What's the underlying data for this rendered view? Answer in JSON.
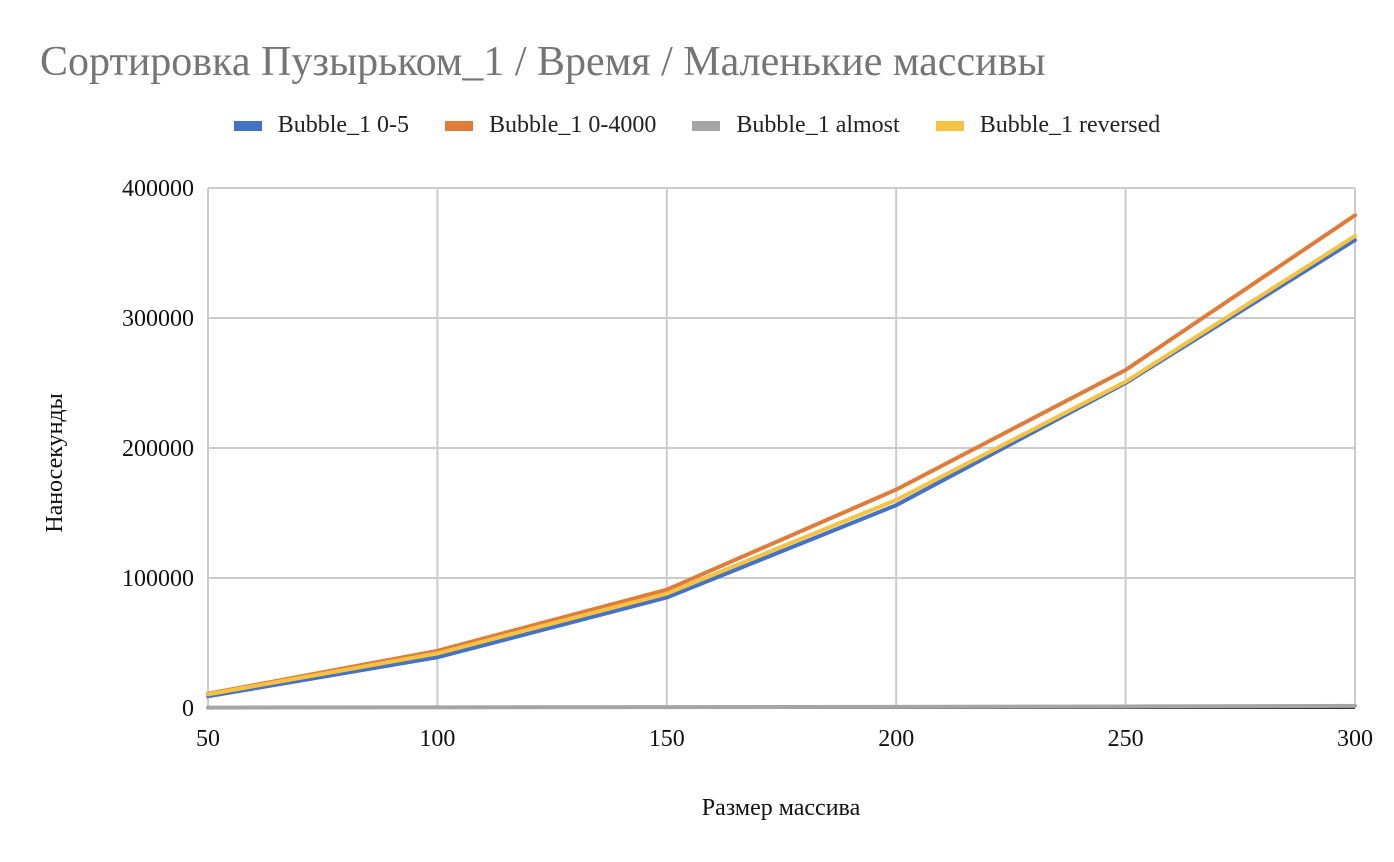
{
  "chart_data": {
    "type": "line",
    "title": "Сортировка Пузырьком_1 / Время / Маленькие массивы",
    "xlabel": "Размер массива",
    "ylabel": "Наносекунды",
    "x": [
      50,
      100,
      150,
      200,
      250,
      300
    ],
    "xlim": [
      50,
      300
    ],
    "ylim": [
      0,
      400000
    ],
    "x_ticks": [
      "50",
      "100",
      "150",
      "200",
      "250",
      "300"
    ],
    "y_ticks": [
      "0",
      "100000",
      "200000",
      "300000",
      "400000"
    ],
    "grid": true,
    "legend_position": "top",
    "series": [
      {
        "name": "Bubble_1 0-5",
        "color": "#4472C4",
        "values": [
          9000,
          39000,
          85000,
          156000,
          250000,
          360000
        ]
      },
      {
        "name": "Bubble_1 0-4000",
        "color": "#E07B39",
        "values": [
          11000,
          44000,
          91000,
          168000,
          260000,
          379000
        ]
      },
      {
        "name": "Bubble_1 almost",
        "color": "#A5A5A5",
        "values": [
          300,
          500,
          700,
          900,
          1200,
          1600
        ]
      },
      {
        "name": "Bubble_1 reversed",
        "color": "#F5C242",
        "values": [
          10500,
          42000,
          88000,
          160000,
          251000,
          363000
        ]
      }
    ]
  }
}
